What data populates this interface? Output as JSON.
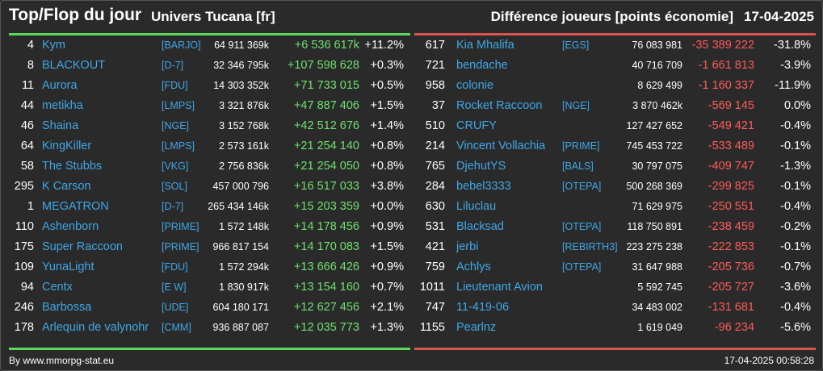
{
  "header": {
    "title": "Top/Flop du jour",
    "universe": "Univers Tucana [fr]",
    "metric": "Différence joueurs [points économie]",
    "date": "17-04-2025"
  },
  "colors": {
    "top_accent": "#5cd65c",
    "flop_accent": "#d9534f",
    "name_color": "#3fa7e6",
    "positive": "#6ee06e",
    "negative": "#ff5a5a"
  },
  "top": [
    {
      "rank": "4",
      "name": "Kym",
      "tag": "[BARJO]",
      "score": "64 911 369k",
      "diff": "+6 536 617k",
      "pct": "+11.2%"
    },
    {
      "rank": "8",
      "name": "BLACKOUT",
      "tag": "[D-7]",
      "score": "32 346 795k",
      "diff": "+107 598 628",
      "pct": "+0.3%"
    },
    {
      "rank": "11",
      "name": "Aurora",
      "tag": "[FDU]",
      "score": "14 303 352k",
      "diff": "+71 733 015",
      "pct": "+0.5%"
    },
    {
      "rank": "44",
      "name": "metikha",
      "tag": "[LMPS]",
      "score": "3 321 876k",
      "diff": "+47 887 406",
      "pct": "+1.5%"
    },
    {
      "rank": "46",
      "name": "Shaina",
      "tag": "[NGE]",
      "score": "3 152 768k",
      "diff": "+42 512 676",
      "pct": "+1.4%"
    },
    {
      "rank": "64",
      "name": "KingKiller",
      "tag": "[LMPS]",
      "score": "2 573 161k",
      "diff": "+21 254 140",
      "pct": "+0.8%"
    },
    {
      "rank": "58",
      "name": "The Stubbs",
      "tag": "[VKG]",
      "score": "2 756 836k",
      "diff": "+21 254 050",
      "pct": "+0.8%"
    },
    {
      "rank": "295",
      "name": "K Carson",
      "tag": "[SOL]",
      "score": "457 000 796",
      "diff": "+16 517 033",
      "pct": "+3.8%"
    },
    {
      "rank": "1",
      "name": "MEGATRON",
      "tag": "[D-7]",
      "score": "265 434 146k",
      "diff": "+15 203 359",
      "pct": "+0.0%"
    },
    {
      "rank": "110",
      "name": "Ashenborn",
      "tag": "[PRIME]",
      "score": "1 572 148k",
      "diff": "+14 178 456",
      "pct": "+0.9%"
    },
    {
      "rank": "175",
      "name": "Super Raccoon",
      "tag": "[PRIME]",
      "score": "966 817 154",
      "diff": "+14 170 083",
      "pct": "+1.5%"
    },
    {
      "rank": "109",
      "name": "YunaLight",
      "tag": "[FDU]",
      "score": "1 572 294k",
      "diff": "+13 666 426",
      "pct": "+0.9%"
    },
    {
      "rank": "94",
      "name": "Centx",
      "tag": "[E W]",
      "score": "1 830 917k",
      "diff": "+13 154 160",
      "pct": "+0.7%"
    },
    {
      "rank": "246",
      "name": "Barbossa",
      "tag": "[UDE]",
      "score": "604 180 171",
      "diff": "+12 627 456",
      "pct": "+2.1%"
    },
    {
      "rank": "178",
      "name": "Arlequin de valynohr",
      "tag": "[CMM]",
      "score": "936 887 087",
      "diff": "+12 035 773",
      "pct": "+1.3%"
    }
  ],
  "flop": [
    {
      "rank": "617",
      "name": "Kia Mhalifa",
      "tag": "[EGS]",
      "score": "76 083 981",
      "diff": "-35 389 222",
      "pct": "-31.8%"
    },
    {
      "rank": "721",
      "name": "bendache",
      "tag": "",
      "score": "40 716 709",
      "diff": "-1 661 813",
      "pct": "-3.9%"
    },
    {
      "rank": "958",
      "name": "colonie",
      "tag": "",
      "score": "8 629 499",
      "diff": "-1 160 337",
      "pct": "-11.9%"
    },
    {
      "rank": "37",
      "name": "Rocket Raccoon",
      "tag": "[NGE]",
      "score": "3 870 462k",
      "diff": "-569 145",
      "pct": "0.0%"
    },
    {
      "rank": "510",
      "name": "CRUFY",
      "tag": "",
      "score": "127 427 652",
      "diff": "-549 421",
      "pct": "-0.4%"
    },
    {
      "rank": "214",
      "name": "Vincent Vollachia",
      "tag": "[PRIME]",
      "score": "745 453 722",
      "diff": "-533 489",
      "pct": "-0.1%"
    },
    {
      "rank": "765",
      "name": "DjehutYS",
      "tag": "[BALS]",
      "score": "30 797 075",
      "diff": "-409 747",
      "pct": "-1.3%"
    },
    {
      "rank": "284",
      "name": "bebel3333",
      "tag": "[OTEPA]",
      "score": "500 268 369",
      "diff": "-299 825",
      "pct": "-0.1%"
    },
    {
      "rank": "630",
      "name": "Liluclau",
      "tag": "",
      "score": "71 629 975",
      "diff": "-250 551",
      "pct": "-0.4%"
    },
    {
      "rank": "531",
      "name": "Blacksad",
      "tag": "[OTEPA]",
      "score": "118 750 891",
      "diff": "-238 459",
      "pct": "-0.2%"
    },
    {
      "rank": "421",
      "name": "jerbi",
      "tag": "[REBIRTH3]",
      "score": "223 275 238",
      "diff": "-222 853",
      "pct": "-0.1%"
    },
    {
      "rank": "759",
      "name": "Achlys",
      "tag": "[OTEPA]",
      "score": "31 647 988",
      "diff": "-205 736",
      "pct": "-0.7%"
    },
    {
      "rank": "1011",
      "name": "Lieutenant Avion",
      "tag": "",
      "score": "5 592 745",
      "diff": "-205 727",
      "pct": "-3.6%"
    },
    {
      "rank": "747",
      "name": "11-419-06",
      "tag": "",
      "score": "34 483 002",
      "diff": "-131 681",
      "pct": "-0.4%"
    },
    {
      "rank": "1155",
      "name": "Pearlnz",
      "tag": "",
      "score": "1 619 049",
      "diff": "-96 234",
      "pct": "-5.6%"
    }
  ],
  "footer": {
    "source": "By www.mmorpg-stat.eu",
    "timestamp": "17-04-2025 00:58:28"
  }
}
